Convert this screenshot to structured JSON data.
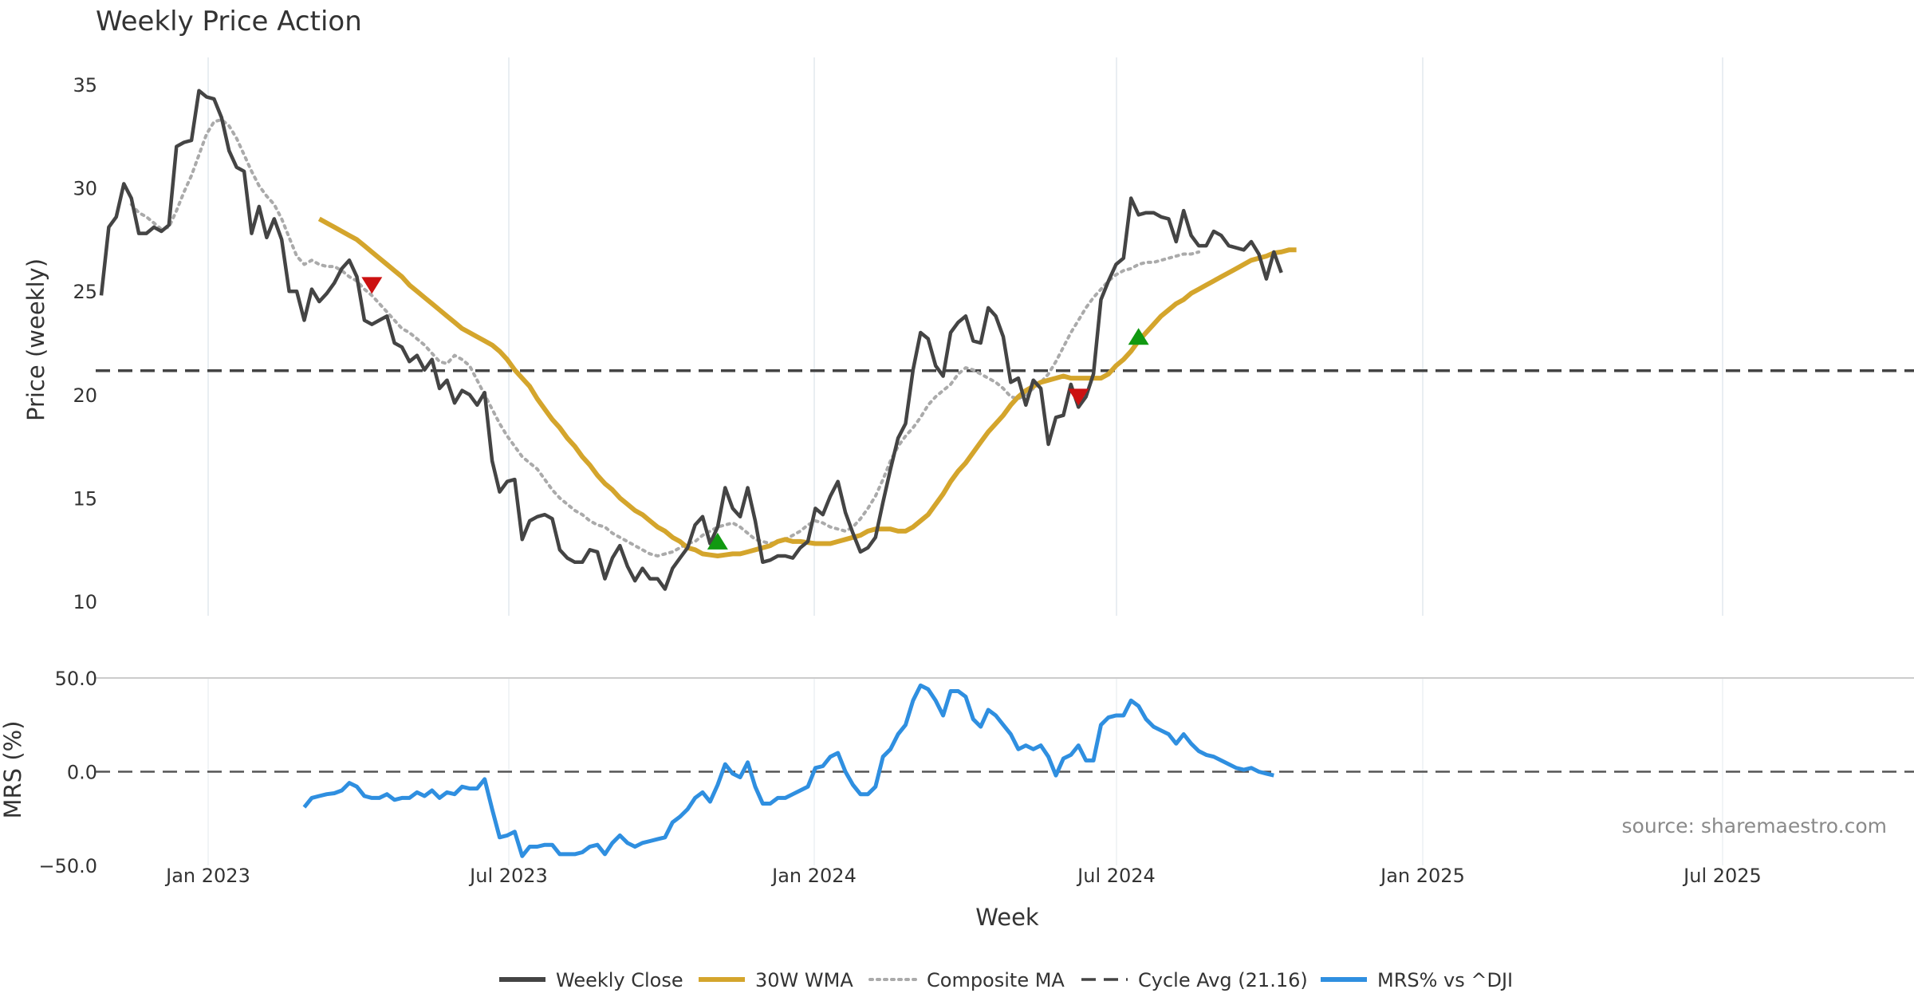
{
  "chart_data": {
    "type": "line",
    "title": "Weekly Price Action",
    "xlabel": "Week",
    "x_tick_labels": [
      "Jan 2023",
      "Jul 2023",
      "Jan 2024",
      "Jul 2024",
      "Jan 2025",
      "Jul 2025"
    ],
    "price_panel": {
      "ylabel": "Price (weekly)",
      "ylim": [
        9,
        36
      ],
      "yticks": [
        10,
        15,
        20,
        25,
        30,
        35
      ],
      "series": [
        {
          "name": "Weekly Close",
          "color": "#444444",
          "start_week": 0,
          "values": [
            24.8,
            28.1,
            28.6,
            30.2,
            29.5,
            27.8,
            27.8,
            28.1,
            27.9,
            28.2,
            32.0,
            32.2,
            32.3,
            34.7,
            34.4,
            34.3,
            33.4,
            31.8,
            31.0,
            30.8,
            27.8,
            29.1,
            27.6,
            28.5,
            27.5,
            25.0,
            25.0,
            23.6,
            25.1,
            24.5,
            24.9,
            25.4,
            26.1,
            26.5,
            25.7,
            23.6,
            23.4,
            23.6,
            23.8,
            22.5,
            22.3,
            21.6,
            21.9,
            21.2,
            21.7,
            20.3,
            20.7,
            19.6,
            20.2,
            20.0,
            19.5,
            20.1,
            16.8,
            15.3,
            15.8,
            15.9,
            13.0,
            13.9,
            14.1,
            14.2,
            14.0,
            12.5,
            12.1,
            11.9,
            11.9,
            12.5,
            12.4,
            11.1,
            12.1,
            12.7,
            11.7,
            11.0,
            11.6,
            11.1,
            11.1,
            10.6,
            11.6,
            12.1,
            12.6,
            13.7,
            14.1,
            12.8,
            13.6,
            15.5,
            14.5,
            14.1,
            15.5,
            13.9,
            11.9,
            12.0,
            12.2,
            12.2,
            12.1,
            12.6,
            12.9,
            14.5,
            14.2,
            15.1,
            15.8,
            14.3,
            13.3,
            12.4,
            12.6,
            13.1,
            14.8,
            16.4,
            17.9,
            18.6,
            21.2,
            23.0,
            22.7,
            21.4,
            20.9,
            23.0,
            23.5,
            23.8,
            22.6,
            22.5,
            24.2,
            23.8,
            22.8,
            20.6,
            20.8,
            19.5,
            20.7,
            20.3,
            17.6,
            18.9,
            19.0,
            20.5,
            19.4,
            19.9,
            21.0,
            24.6,
            25.5,
            26.3,
            26.6,
            29.5,
            28.7,
            28.8,
            28.8,
            28.6,
            28.5,
            27.4,
            28.9,
            27.7,
            27.2,
            27.2,
            27.9,
            27.7,
            27.2,
            27.1,
            27.0,
            27.4,
            26.8,
            25.6,
            26.9,
            25.9
          ]
        },
        {
          "name": "30W WMA",
          "color": "#d4a52c",
          "start_week": 29,
          "values": [
            28.5,
            28.3,
            28.1,
            27.9,
            27.7,
            27.5,
            27.2,
            26.9,
            26.6,
            26.3,
            26.0,
            25.7,
            25.3,
            25.0,
            24.7,
            24.4,
            24.1,
            23.8,
            23.5,
            23.2,
            23.0,
            22.8,
            22.6,
            22.4,
            22.1,
            21.7,
            21.2,
            20.8,
            20.4,
            19.8,
            19.3,
            18.8,
            18.4,
            17.9,
            17.5,
            17.0,
            16.6,
            16.1,
            15.7,
            15.4,
            15.0,
            14.7,
            14.4,
            14.2,
            13.9,
            13.6,
            13.4,
            13.1,
            12.9,
            12.6,
            12.5,
            12.3,
            12.25,
            12.2,
            12.25,
            12.3,
            12.3,
            12.4,
            12.5,
            12.6,
            12.7,
            12.9,
            13.0,
            12.9,
            12.9,
            12.85,
            12.8,
            12.8,
            12.8,
            12.9,
            13.0,
            13.1,
            13.2,
            13.4,
            13.5,
            13.5,
            13.5,
            13.4,
            13.4,
            13.6,
            13.9,
            14.2,
            14.7,
            15.2,
            15.8,
            16.3,
            16.7,
            17.2,
            17.7,
            18.2,
            18.6,
            19.0,
            19.5,
            19.9,
            20.2,
            20.4,
            20.6,
            20.7,
            20.8,
            20.9,
            20.8,
            20.8,
            20.8,
            20.8,
            20.8,
            21.0,
            21.4,
            21.7,
            22.1,
            22.6,
            23.0,
            23.4,
            23.8,
            24.1,
            24.4,
            24.6,
            24.9,
            25.1,
            25.3,
            25.5,
            25.7,
            25.9,
            26.1,
            26.3,
            26.5,
            26.6,
            26.7,
            26.85,
            26.9,
            27.0,
            27.0
          ]
        },
        {
          "name": "Composite MA",
          "color": "#aaaaaa",
          "start_week": 4,
          "values": [
            29.2,
            28.8,
            28.6,
            28.3,
            28.0,
            28.1,
            28.9,
            29.8,
            30.6,
            31.6,
            32.6,
            33.2,
            33.3,
            33.0,
            32.4,
            31.6,
            30.8,
            30.1,
            29.6,
            29.2,
            28.5,
            27.6,
            26.7,
            26.3,
            26.5,
            26.3,
            26.2,
            26.2,
            26.0,
            25.7,
            25.5,
            25.1,
            24.8,
            24.4,
            24.0,
            23.6,
            23.2,
            23.0,
            22.7,
            22.4,
            22.0,
            21.6,
            21.5,
            21.9,
            21.7,
            21.4,
            20.7,
            20.0,
            19.3,
            18.6,
            18.0,
            17.5,
            17.0,
            16.7,
            16.4,
            15.9,
            15.4,
            15.0,
            14.7,
            14.4,
            14.2,
            13.9,
            13.7,
            13.6,
            13.3,
            13.1,
            12.9,
            12.7,
            12.5,
            12.3,
            12.2,
            12.3,
            12.4,
            12.6,
            12.8,
            12.9,
            13.2,
            13.4,
            13.6,
            13.7,
            13.8,
            13.6,
            13.3,
            13.0,
            12.9,
            12.8,
            12.9,
            13.0,
            13.2,
            13.4,
            13.7,
            13.9,
            13.8,
            13.6,
            13.5,
            13.4,
            13.6,
            14.0,
            14.5,
            15.1,
            15.9,
            16.8,
            17.5,
            18.0,
            18.4,
            18.9,
            19.5,
            19.9,
            20.2,
            20.5,
            21.0,
            21.3,
            21.2,
            21.0,
            20.8,
            20.6,
            20.3,
            19.9,
            19.8,
            20.0,
            20.3,
            20.6,
            21.0,
            21.6,
            22.3,
            23.0,
            23.6,
            24.2,
            24.7,
            25.1,
            25.5,
            25.8,
            26.0,
            26.1,
            26.3,
            26.4,
            26.4,
            26.5,
            26.6,
            26.7,
            26.8,
            26.8,
            26.9
          ]
        },
        {
          "name": "Cycle Avg (21.16)",
          "color": "#444444",
          "constant": 21.16
        }
      ],
      "signals": [
        {
          "type": "sell",
          "week": 36,
          "value": 25.3,
          "color": "#cc1111"
        },
        {
          "type": "buy",
          "week": 82,
          "value": 12.9,
          "color": "#119911"
        },
        {
          "type": "sell",
          "week": 130,
          "value": 19.9,
          "color": "#cc1111"
        },
        {
          "type": "buy",
          "week": 138,
          "value": 22.8,
          "color": "#119911"
        }
      ]
    },
    "mrs_panel": {
      "ylabel": "MRS (%)",
      "ylim": [
        -50,
        50
      ],
      "yticks": [
        50.0,
        0.0,
        -50.0
      ],
      "ytick_labels": [
        "50.0",
        "0.0",
        "−50.0"
      ],
      "zero_line": 0,
      "series": [
        {
          "name": "MRS% vs ^DJI",
          "color": "#2f8fe0",
          "start_week": 27,
          "values": [
            -19,
            -14,
            -13,
            -12,
            -11.5,
            -10,
            -6,
            -8,
            -13,
            -14,
            -14,
            -12,
            -15,
            -14,
            -14,
            -11,
            -13,
            -10,
            -14,
            -11,
            -12,
            -8,
            -9,
            -9,
            -4,
            -20,
            -35,
            -34,
            -32,
            -45,
            -40,
            -40,
            -39,
            -39,
            -44,
            -44,
            -44,
            -43,
            -40,
            -39,
            -44,
            -38,
            -34,
            -38,
            -40,
            -38,
            -37,
            -36,
            -35,
            -27,
            -24,
            -20,
            -14,
            -11,
            -16,
            -7,
            4,
            -1,
            -3,
            5,
            -8,
            -17,
            -17,
            -14,
            -14,
            -12,
            -10,
            -8,
            2,
            3,
            8,
            10,
            0,
            -7,
            -12,
            -12,
            -8,
            8,
            12,
            20,
            25,
            38,
            46,
            44,
            38,
            30,
            43,
            43,
            40,
            28,
            24,
            33,
            30,
            25,
            20,
            12,
            14,
            12,
            14,
            8,
            -2,
            7,
            9,
            14,
            6,
            6,
            25,
            29,
            30,
            30,
            38,
            35,
            28,
            24,
            22,
            20,
            15,
            20,
            15,
            11,
            9,
            8,
            6,
            4,
            2,
            1,
            2,
            0,
            -1,
            -2
          ]
        }
      ]
    },
    "legend": [
      {
        "label": "Weekly Close",
        "style": "solid",
        "color": "#444444"
      },
      {
        "label": "30W WMA",
        "style": "solid",
        "color": "#d4a52c"
      },
      {
        "label": "Composite MA",
        "style": "dotted",
        "color": "#aaaaaa"
      },
      {
        "label": "Cycle Avg (21.16)",
        "style": "dashed",
        "color": "#444444"
      },
      {
        "label": "MRS% vs ^DJI",
        "style": "solid",
        "color": "#2f8fe0"
      }
    ],
    "legend_position": "bottom-center",
    "source_note": "source: sharemaestro.com"
  }
}
